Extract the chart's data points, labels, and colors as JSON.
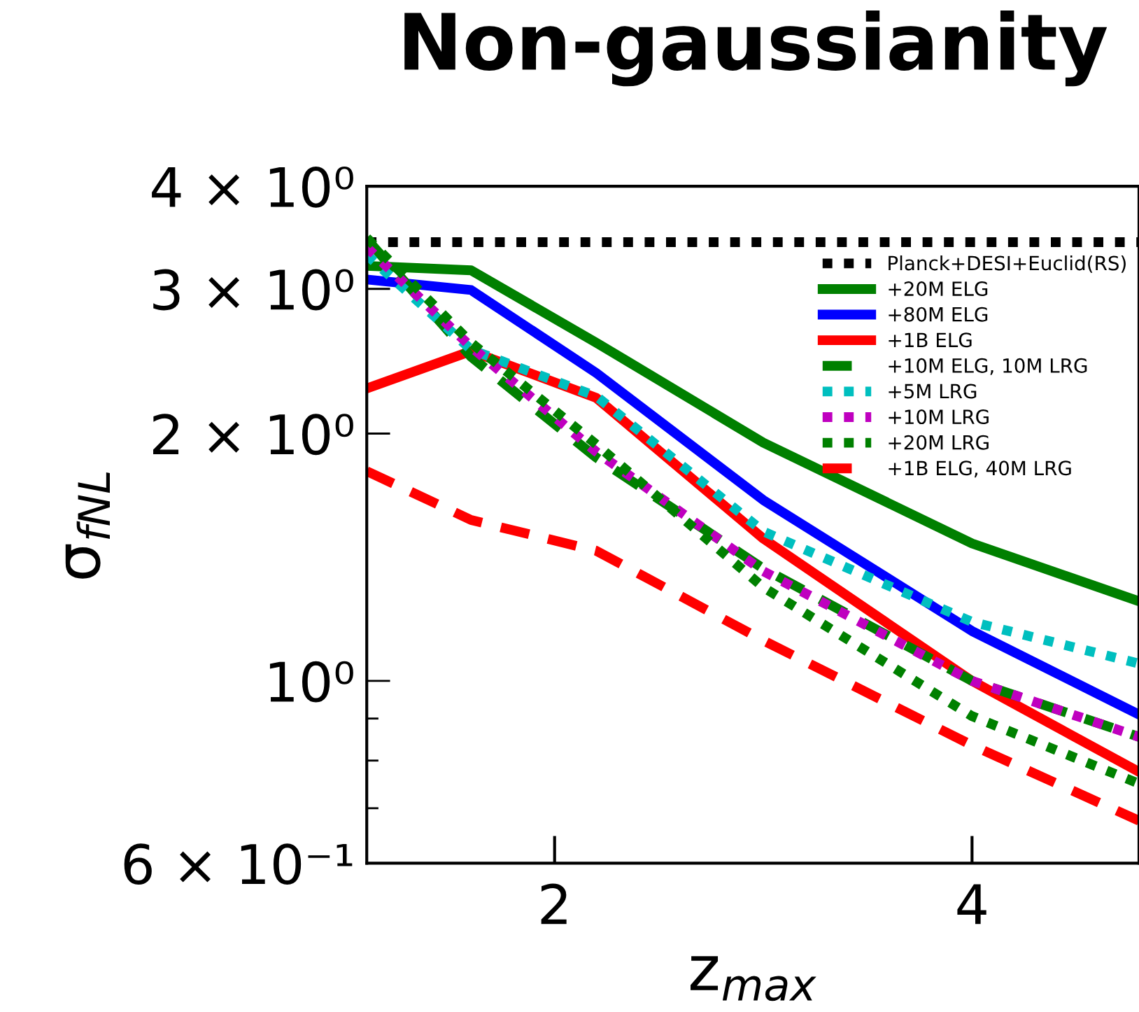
{
  "chart_data": {
    "type": "line",
    "title": "Non-gaussianity",
    "xlabel": "z$_{max}$",
    "ylabel": "σ$_{fNL}$",
    "x": [
      1.1,
      1.6,
      2.2,
      3.0,
      4.0,
      4.8
    ],
    "xlim": [
      1.1,
      4.8
    ],
    "xticks": [
      2,
      4
    ],
    "ylim": [
      0.6,
      4
    ],
    "log": true,
    "yticks": [
      {
        "value": 0.6,
        "label": "6 × 10⁻¹"
      },
      {
        "value": 0.7,
        "label": null
      },
      {
        "value": 0.8,
        "label": null
      },
      {
        "value": 0.9,
        "label": null
      },
      {
        "value": 1,
        "label": "10⁰"
      },
      {
        "value": 2,
        "label": "2 × 10⁰"
      },
      {
        "value": 3,
        "label": "3 × 10⁰"
      },
      {
        "value": 4,
        "label": "4 × 10⁰"
      }
    ],
    "grid": false,
    "legend": "top right",
    "series": [
      {
        "name": "Planck+DESI+Euclid(RS)",
        "color": "#000000",
        "line_style": "dotted",
        "values": [
          3.42,
          3.42,
          3.42,
          3.42,
          3.42,
          3.42
        ]
      },
      {
        "name": "+20M ELG",
        "color": "#008000",
        "line_style": "solid",
        "values": [
          3.2,
          3.16,
          2.58,
          1.95,
          1.47,
          1.25
        ]
      },
      {
        "name": "+80M ELG",
        "color": "#0000ff",
        "line_style": "solid",
        "values": [
          3.08,
          2.99,
          2.37,
          1.66,
          1.15,
          0.91
        ]
      },
      {
        "name": "+1B ELG",
        "color": "#ff0000",
        "line_style": "solid",
        "values": [
          2.27,
          2.52,
          2.21,
          1.49,
          1.0,
          0.775
        ]
      },
      {
        "name": "+10M ELG, 10M LRG",
        "color": "#008000",
        "line_style": "dashed",
        "values": [
          3.45,
          2.48,
          1.87,
          1.37,
          1.0,
          0.855
        ]
      },
      {
        "name": "+5M LRG",
        "color": "#00bfbf",
        "line_style": "dotted",
        "values": [
          3.3,
          2.53,
          2.22,
          1.52,
          1.18,
          1.05
        ]
      },
      {
        "name": "+10M LRG",
        "color": "#bf00bf",
        "line_style": "dotted",
        "values": [
          3.37,
          2.55,
          1.9,
          1.36,
          1.0,
          0.855
        ]
      },
      {
        "name": "+20M LRG",
        "color": "#008000",
        "line_style": "dotted",
        "values": [
          3.46,
          2.58,
          1.94,
          1.3,
          0.906,
          0.75
        ]
      },
      {
        "name": "+1B ELG, 40M LRG",
        "color": "#ff0000",
        "line_style": "dashed",
        "values": [
          1.8,
          1.57,
          1.44,
          1.12,
          0.835,
          0.676
        ]
      }
    ]
  }
}
